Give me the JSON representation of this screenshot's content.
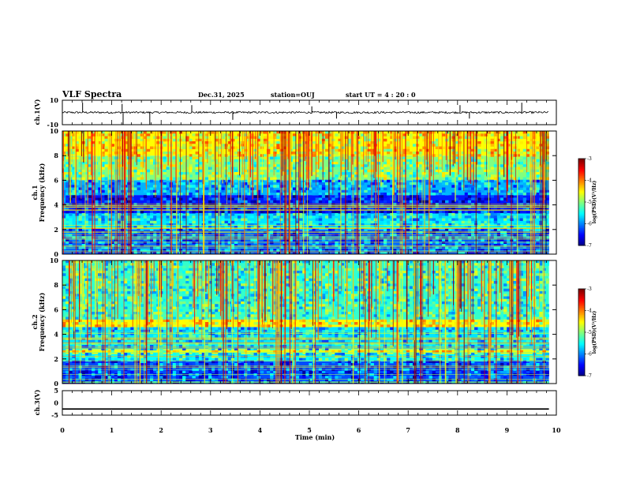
{
  "header": {
    "title": "VLF Spectra",
    "date": "Dec.31, 2025",
    "station": "station=OUJ",
    "start": "start  UT =   4 : 20 : 0"
  },
  "chart_data": [
    {
      "type": "line",
      "name": "ch.1 waveform",
      "ylabel": "ch.1(V)",
      "ylim": [
        -10,
        10
      ],
      "yticks": [
        "10",
        "-10"
      ],
      "baseline": 0,
      "spikes": [
        {
          "t": 0.41,
          "v": 8
        },
        {
          "t": 1.21,
          "v": 7
        },
        {
          "t": 1.23,
          "v": -10
        },
        {
          "t": 1.77,
          "v": -10
        },
        {
          "t": 2.62,
          "v": 6
        },
        {
          "t": 3.45,
          "v": -6
        },
        {
          "t": 5.05,
          "v": 5
        },
        {
          "t": 5.55,
          "v": -5
        },
        {
          "t": 8.05,
          "v": 6
        },
        {
          "t": 8.24,
          "v": -5
        },
        {
          "t": 9.3,
          "v": 8
        }
      ]
    },
    {
      "type": "heatmap",
      "name": "ch.1 spectrogram",
      "ylabel_top": "ch.1",
      "ylabel": "Frequency (kHz)",
      "ylim": [
        0,
        10
      ],
      "yticks": [
        "0",
        "2",
        "4",
        "6",
        "8",
        "10"
      ],
      "bands_khz": [
        {
          "from": 0,
          "to": 2.0,
          "level": -6.1
        },
        {
          "from": 2.0,
          "to": 3.3,
          "level": -5.6
        },
        {
          "from": 3.3,
          "to": 4.8,
          "level": -6.4
        },
        {
          "from": 4.8,
          "to": 6.0,
          "level": -5.8
        },
        {
          "from": 6.0,
          "to": 8.0,
          "level": -5.0
        },
        {
          "from": 8.0,
          "to": 10,
          "level": -4.5
        }
      ],
      "colorbar": {
        "label": "log(PSD)(V²/Hz)",
        "range": [
          -7,
          -3
        ],
        "ticks": [
          "-3",
          "-4",
          "-5",
          "-6",
          "-7"
        ]
      }
    },
    {
      "type": "heatmap",
      "name": "ch.2 spectrogram",
      "ylabel_top": "ch.2",
      "ylabel": "Frequency (kHz)",
      "ylim": [
        0,
        10
      ],
      "yticks": [
        "0",
        "2",
        "4",
        "6",
        "8",
        "10"
      ],
      "bands_khz": [
        {
          "from": 0,
          "to": 1.8,
          "level": -6.2
        },
        {
          "from": 1.8,
          "to": 2.4,
          "level": -5.5
        },
        {
          "from": 2.4,
          "to": 2.8,
          "level": -4.6
        },
        {
          "from": 2.8,
          "to": 4.6,
          "level": -5.6
        },
        {
          "from": 4.6,
          "to": 5.2,
          "level": -4.5
        },
        {
          "from": 5.2,
          "to": 10,
          "level": -5.3
        }
      ],
      "colorbar": {
        "label": "log(PSD)(V²/Hz)",
        "range": [
          -7,
          -3
        ],
        "ticks": [
          "-3",
          "-4",
          "-5",
          "-6",
          "-7"
        ]
      }
    },
    {
      "type": "line",
      "name": "ch.3 waveform",
      "ylabel": "ch.3(V)",
      "ylim": [
        -5,
        5
      ],
      "yticks": [
        "5",
        "0",
        "-5"
      ],
      "values_constant": -2.5
    }
  ],
  "xaxis": {
    "label": "Time (min)",
    "xlim": [
      0,
      10
    ],
    "ticks": [
      "0",
      "1",
      "2",
      "3",
      "4",
      "5",
      "6",
      "7",
      "8",
      "9",
      "10"
    ],
    "data_end": 9.85
  }
}
